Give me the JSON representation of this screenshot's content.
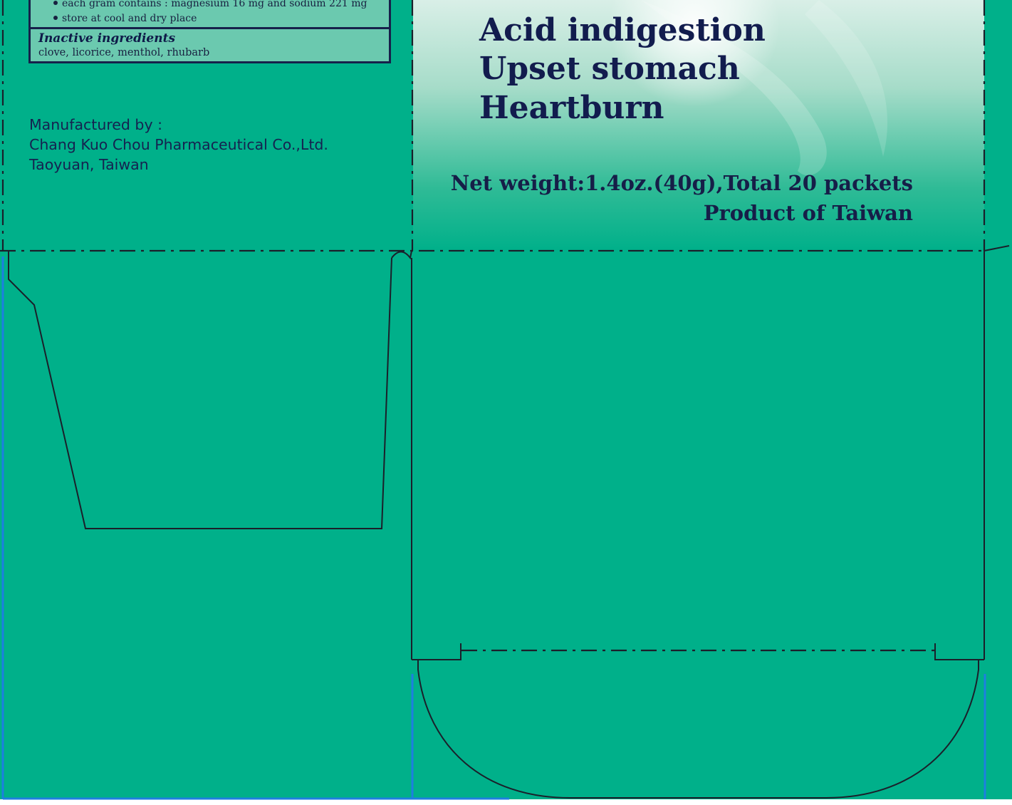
{
  "colors": {
    "panel_green": "#00b08a",
    "light_mint": "#d5ece4",
    "text_navy": "#14214a",
    "die_line": "#1b1f2a",
    "guide_blue": "#1e7fe0"
  },
  "ingredients_box": {
    "bullets": [
      "each gram contains : magnesium 16 mg and sodium 221 mg",
      "store at cool and dry place"
    ],
    "inactive_title": "Inactive ingredients",
    "inactive_list": "clove, licorice, menthol, rhubarb"
  },
  "manufacturer": {
    "label": "Manufactured by :",
    "name": "Chang Kuo Chou Pharmaceutical Co.,Ltd.",
    "city": "Taoyuan, Taiwan"
  },
  "front_panel": {
    "headlines": [
      "Acid indigestion",
      "Upset stomach",
      "Heartburn"
    ],
    "net_weight": "Net weight:1.4oz.(40g),Total 20 packets",
    "origin": "Product of Taiwan"
  }
}
